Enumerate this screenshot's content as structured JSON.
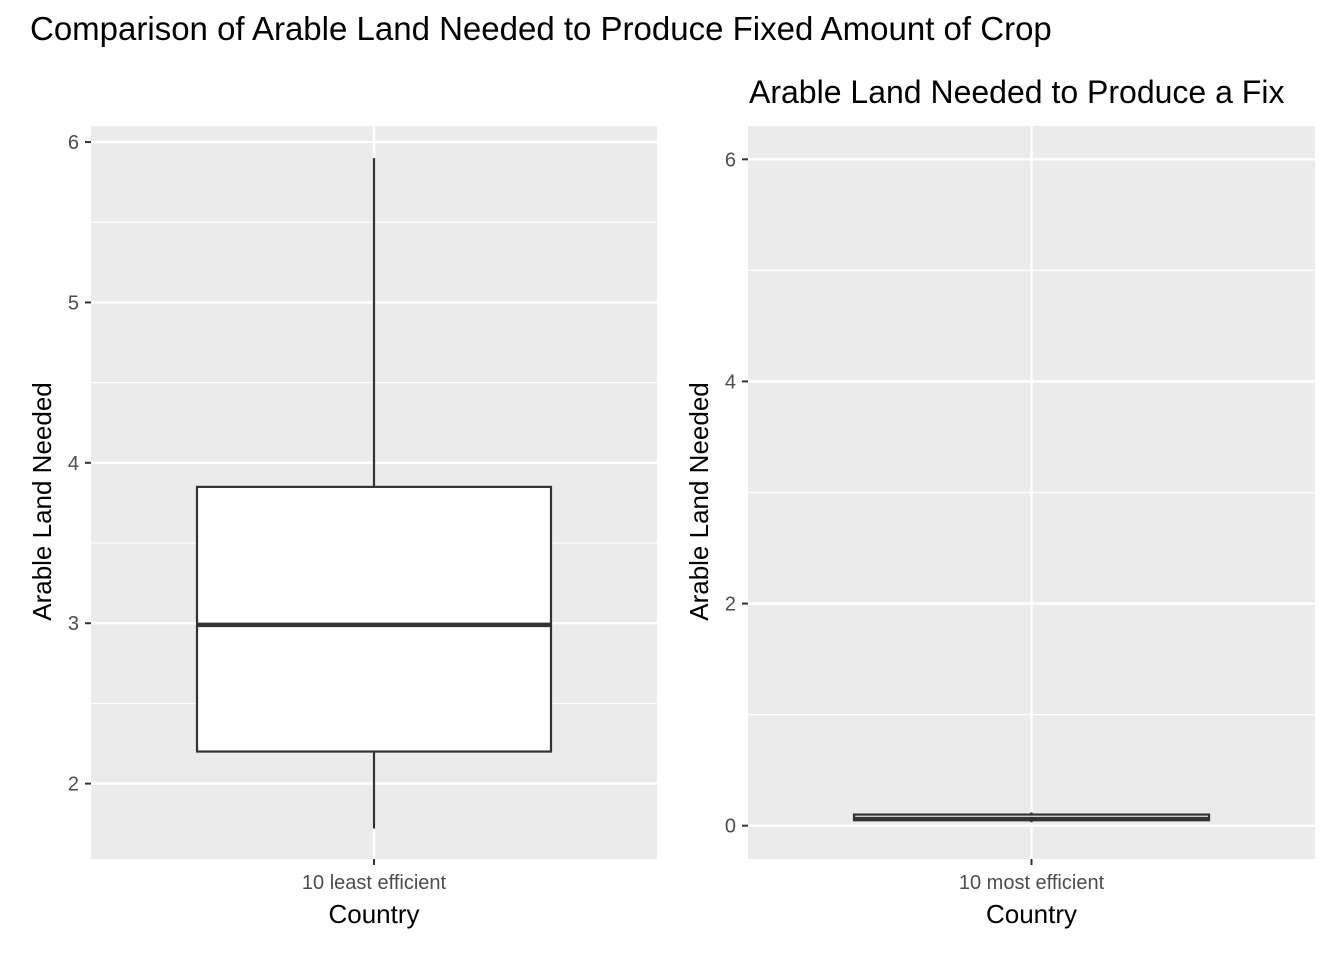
{
  "figure": {
    "title": "Comparison of Arable Land Needed to Produce Fixed Amount of Crop"
  },
  "chart_data": [
    {
      "type": "box",
      "title": "",
      "xlabel": "Country",
      "ylabel": "Arable Land Needed",
      "categories": [
        "10 least efficient"
      ],
      "box": {
        "min": 1.72,
        "q1": 2.2,
        "median": 2.99,
        "q3": 3.85,
        "max": 5.9
      },
      "yticks": [
        2,
        3,
        4,
        5,
        6
      ],
      "ylim": [
        1.53,
        6.1
      ],
      "grid": true,
      "colors": {
        "panel": "#ebebeb",
        "grid": "#ffffff",
        "box_fill": "#ffffff",
        "box_line": "#333333"
      }
    },
    {
      "type": "box",
      "title": "Arable Land Needed to Produce a Fix",
      "xlabel": "Country",
      "ylabel": "Arable Land Needed",
      "categories": [
        "10 most efficient"
      ],
      "box": {
        "min": 0.03,
        "q1": 0.05,
        "median": 0.06,
        "q3": 0.1,
        "max": 0.12
      },
      "yticks": [
        0,
        2,
        4,
        6
      ],
      "ylim": [
        -0.3,
        6.3
      ],
      "grid": true,
      "colors": {
        "panel": "#ebebeb",
        "grid": "#ffffff",
        "box_fill": "#ffffff",
        "box_line": "#333333"
      }
    }
  ]
}
